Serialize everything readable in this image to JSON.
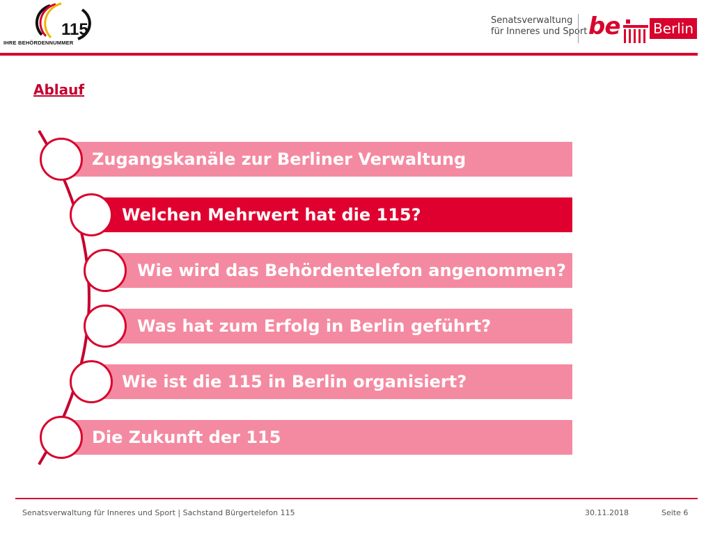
{
  "header": {
    "logo_115": {
      "number": "115",
      "caption": "IHRE BEHÖRDENNUMMER"
    },
    "senat_line1": "Senatsverwaltung",
    "senat_line2": "für Inneres und Sport",
    "be_logo_text": "be",
    "berlin_label": "Berlin"
  },
  "title": "Ablauf",
  "agenda": [
    {
      "label": "Zugangskanäle zur Berliner Verwaltung",
      "active": false
    },
    {
      "label": "Welchen Mehrwert hat die 115?",
      "active": true
    },
    {
      "label": "Wie wird das Behördentelefon angenommen?",
      "active": false
    },
    {
      "label": "Was hat zum Erfolg in Berlin geführt?",
      "active": false
    },
    {
      "label": "Wie ist die 115 in Berlin organisiert?",
      "active": false
    },
    {
      "label": "Die Zukunft der 115",
      "active": false
    }
  ],
  "footer": {
    "source": "Senatsverwaltung für Inneres und Sport | Sachstand Bürgertelefon 115",
    "date": "30.11.2018",
    "page": "Seite 6"
  },
  "colors": {
    "brand_red": "#d8042d",
    "bar_pink": "#f48aa1",
    "bar_active": "#e0002f"
  }
}
